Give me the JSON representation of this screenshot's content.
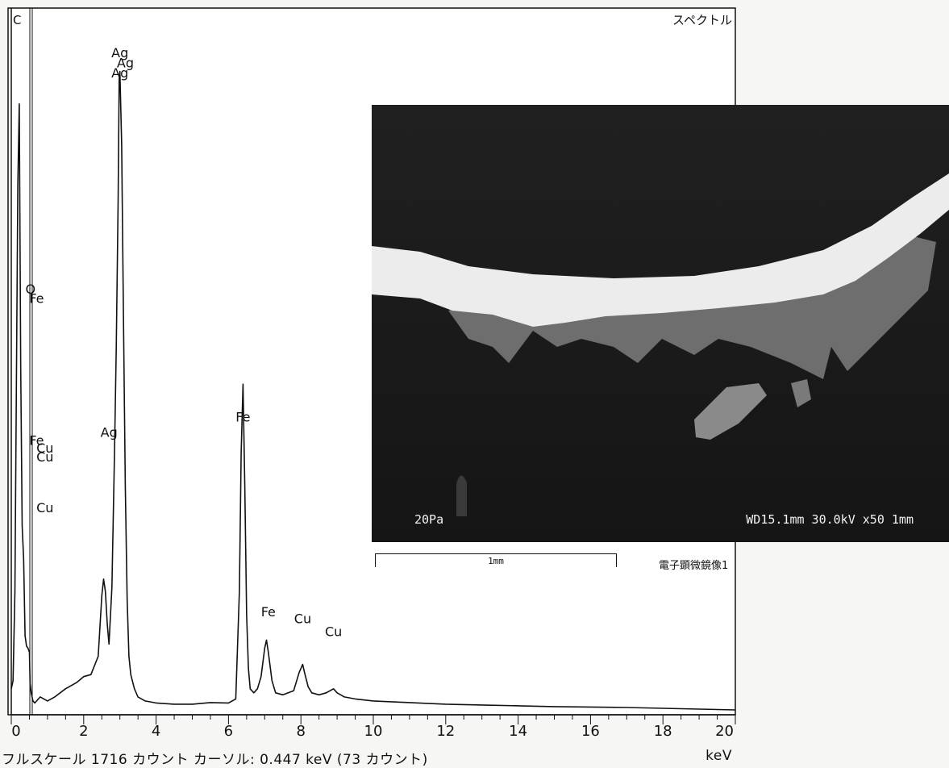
{
  "panel_title": "スペクトル",
  "status": {
    "full_scale": "フルスケール 1716 カウント カーソル: 0.447 keV (73 カウント)",
    "unit": "keV"
  },
  "chart_data": {
    "type": "line",
    "title": "スペクトル",
    "xlabel": "keV",
    "ylabel": "",
    "xlim": [
      0,
      20
    ],
    "ylim": [
      0,
      1716
    ],
    "xticks": [
      0,
      2,
      4,
      6,
      8,
      10,
      12,
      14,
      16,
      18,
      20
    ],
    "cursor_kev": 0.447,
    "cursor_counts": 73,
    "series": [
      {
        "x": [
          0.0,
          0.05,
          0.1,
          0.18,
          0.22,
          0.26,
          0.3,
          0.34,
          0.38,
          0.42,
          0.46,
          0.5,
          0.52,
          0.55,
          0.6,
          0.65,
          0.7,
          0.8,
          1.0,
          1.2,
          1.5,
          1.8,
          2.0,
          2.2,
          2.4,
          2.5,
          2.55,
          2.6,
          2.65,
          2.7,
          2.78,
          2.85,
          2.9,
          2.95,
          2.98,
          3.0,
          3.05,
          3.1,
          3.15,
          3.2,
          3.25,
          3.3,
          3.4,
          3.5,
          3.7,
          4.0,
          4.5,
          5.0,
          5.5,
          6.0,
          6.2,
          6.3,
          6.35,
          6.4,
          6.45,
          6.5,
          6.55,
          6.6,
          6.7,
          6.8,
          6.9,
          7.0,
          7.05,
          7.1,
          7.2,
          7.3,
          7.5,
          7.8,
          7.95,
          8.05,
          8.1,
          8.2,
          8.3,
          8.5,
          8.7,
          8.9,
          9.0,
          9.2,
          9.5,
          10.0,
          11.0,
          12.0,
          13.0,
          14.0,
          15.0,
          16.0,
          17.0,
          18.0,
          19.0,
          20.0
        ],
        "values": [
          60,
          80,
          300,
          1300,
          1500,
          850,
          460,
          380,
          190,
          165,
          160,
          150,
          73,
          50,
          30,
          25,
          30,
          40,
          30,
          40,
          60,
          75,
          90,
          95,
          140,
          290,
          330,
          300,
          220,
          170,
          310,
          640,
          900,
          1260,
          1560,
          1580,
          1400,
          960,
          560,
          280,
          140,
          95,
          60,
          40,
          30,
          25,
          22,
          22,
          26,
          25,
          35,
          300,
          640,
          810,
          560,
          240,
          110,
          60,
          50,
          60,
          90,
          160,
          180,
          150,
          80,
          50,
          45,
          55,
          100,
          120,
          100,
          65,
          50,
          45,
          50,
          60,
          50,
          40,
          35,
          30,
          26,
          22,
          20,
          18,
          16,
          15,
          14,
          12,
          10,
          8
        ]
      }
    ],
    "peak_labels": [
      {
        "text": "Ag",
        "x": 3.0,
        "counts": 1615
      },
      {
        "text": "Ag",
        "x": 3.15,
        "counts": 1590
      },
      {
        "text": "Ag",
        "x": 3.0,
        "counts": 1565
      },
      {
        "text": "O",
        "x": 0.53,
        "counts": 1033
      },
      {
        "text": "Fe",
        "x": 0.7,
        "counts": 1010
      },
      {
        "text": "Ag",
        "x": 2.7,
        "counts": 680
      },
      {
        "text": "Fe",
        "x": 6.4,
        "counts": 718
      },
      {
        "text": "Fe",
        "x": 0.7,
        "counts": 660
      },
      {
        "text": "Cu",
        "x": 0.93,
        "counts": 642
      },
      {
        "text": "Cu",
        "x": 0.93,
        "counts": 620
      },
      {
        "text": "Cu",
        "x": 0.93,
        "counts": 495
      },
      {
        "text": "Fe",
        "x": 7.1,
        "counts": 238
      },
      {
        "text": "Cu",
        "x": 8.05,
        "counts": 221
      },
      {
        "text": "Cu",
        "x": 8.9,
        "counts": 190
      }
    ]
  },
  "sem": {
    "pressure": "20Pa",
    "conditions": "WD15.1mm 30.0kV x50    1mm",
    "scale_bar_label": "1mm",
    "caption": "電子顕微鏡像1"
  }
}
